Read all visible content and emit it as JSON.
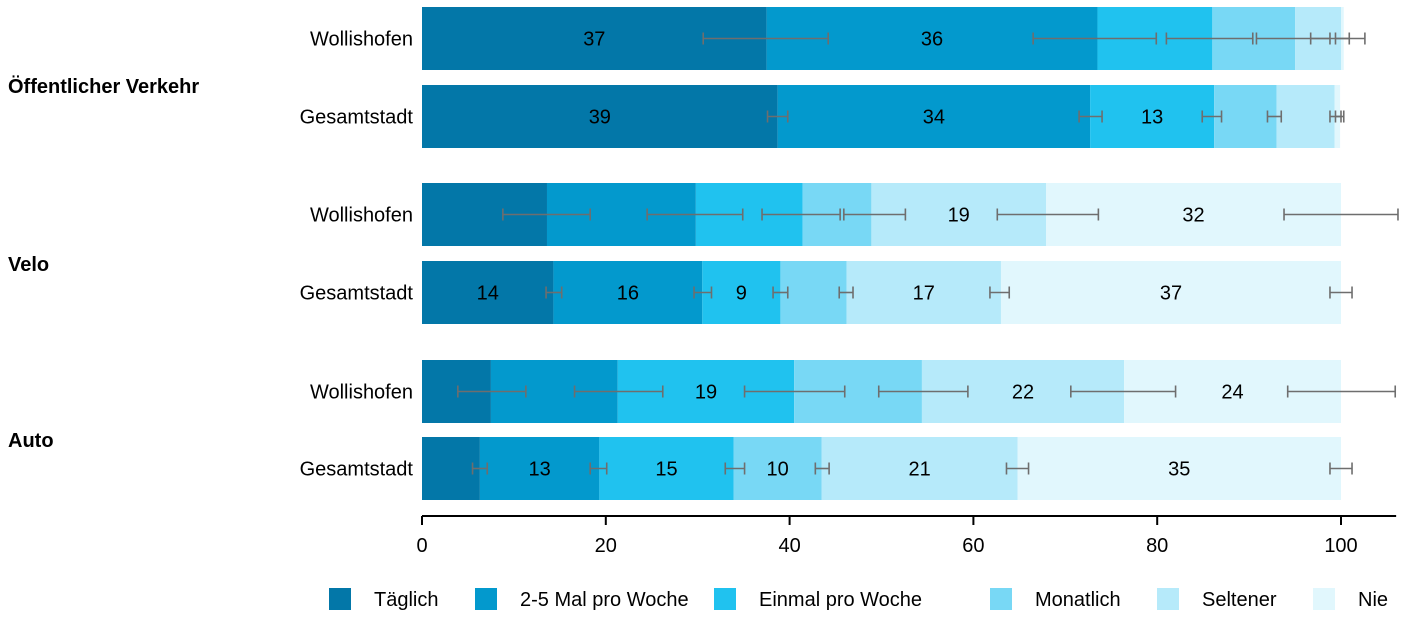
{
  "chart_data": {
    "type": "bar",
    "orientation": "horizontal",
    "stacked": true,
    "xlim": [
      0,
      106
    ],
    "xticks": [
      0,
      20,
      40,
      60,
      80,
      100
    ],
    "grid": false,
    "legend_position": "bottom",
    "groups": [
      {
        "label": "Öffentlicher Verkehr",
        "bars": [
          {
            "label": "Wollishofen",
            "values": [
              37.5,
              36,
              12.5,
              9,
              5,
              0.3
            ],
            "value_labels": [
              "37",
              "36",
              "",
              "",
              "",
              ""
            ],
            "errors": [
              [
                30.6,
                44.2
              ],
              [
                66.5,
                79.9
              ],
              [
                81,
                90.4
              ],
              [
                90.8,
                98.8
              ],
              [
                96.7,
                102.6
              ],
              [
                99.4,
                100.9
              ]
            ]
          },
          {
            "label": "Gesamtstadt",
            "values": [
              38.7,
              34,
              13.5,
              6.8,
              6.3,
              0.6
            ],
            "value_labels": [
              "39",
              "34",
              "13",
              "",
              "",
              ""
            ],
            "errors": [
              [
                37.6,
                39.8
              ],
              [
                71.5,
                74
              ],
              [
                84.9,
                87
              ],
              [
                92,
                93.5
              ],
              [
                98.8,
                100
              ],
              [
                99.4,
                100.3
              ]
            ]
          }
        ]
      },
      {
        "label": "Velo",
        "bars": [
          {
            "label": "Wollishofen",
            "values": [
              13.6,
              16.2,
              11.6,
              7.5,
              19,
              32.1
            ],
            "value_labels": [
              "",
              "",
              "",
              "",
              "19",
              "32"
            ],
            "errors": [
              [
                8.8,
                18.3
              ],
              [
                24.5,
                34.9
              ],
              [
                37,
                45.5
              ],
              [
                45.9,
                52.6
              ],
              [
                62.6,
                73.6
              ],
              [
                93.8,
                106.2
              ]
            ]
          },
          {
            "label": "Gesamtstadt",
            "values": [
              14.3,
              16.2,
              8.5,
              7.2,
              16.8,
              37
            ],
            "value_labels": [
              "14",
              "16",
              "9",
              "",
              "17",
              "37"
            ],
            "errors": [
              [
                13.5,
                15.2
              ],
              [
                29.6,
                31.5
              ],
              [
                38.2,
                39.8
              ],
              [
                45.4,
                46.9
              ],
              [
                61.8,
                63.9
              ],
              [
                98.8,
                101.2
              ]
            ]
          }
        ]
      },
      {
        "label": "Auto",
        "bars": [
          {
            "label": "Wollishofen",
            "values": [
              7.5,
              13.8,
              19.2,
              13.9,
              22,
              23.6
            ],
            "value_labels": [
              "",
              "",
              "19",
              "",
              "22",
              "24"
            ],
            "errors": [
              [
                3.9,
                11.3
              ],
              [
                16.6,
                26.2
              ],
              [
                35.1,
                46
              ],
              [
                49.7,
                59.4
              ],
              [
                70.6,
                82
              ],
              [
                94.2,
                105.9
              ]
            ]
          },
          {
            "label": "Gesamtstadt",
            "values": [
              6.3,
              13,
              14.6,
              9.6,
              21.3,
              35.2
            ],
            "value_labels": [
              "",
              "13",
              "15",
              "10",
              "21",
              "35"
            ],
            "errors": [
              [
                5.5,
                7.1
              ],
              [
                18.3,
                20.1
              ],
              [
                33,
                35.1
              ],
              [
                42.8,
                44.3
              ],
              [
                63.6,
                66
              ],
              [
                98.8,
                101.2
              ]
            ]
          }
        ]
      }
    ],
    "series": [
      {
        "name": "Täglich",
        "color": "#0377a8"
      },
      {
        "name": "2-5 Mal pro Woche",
        "color": "#0399cd"
      },
      {
        "name": "Einmal pro Woche",
        "color": "#20c2ef"
      },
      {
        "name": "Monatlich",
        "color": "#78d8f5"
      },
      {
        "name": "Seltener",
        "color": "#b6eafa"
      },
      {
        "name": "Nie",
        "color": "#e1f7fd"
      }
    ],
    "error_bar_color": "#6e6e6e"
  }
}
